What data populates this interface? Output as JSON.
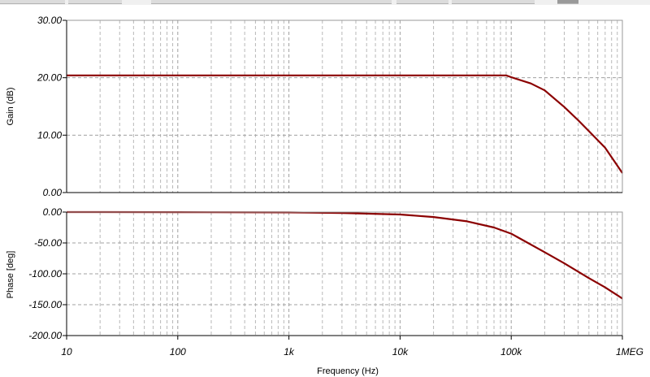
{
  "chart_data": [
    {
      "name": "gain-plot",
      "type": "line",
      "ylabel": "Gain (dB)",
      "xscale": "log",
      "xlim": [
        10,
        1000000
      ],
      "ylim": [
        0,
        30
      ],
      "yticks": [
        "30.00",
        "20.00",
        "10.00",
        "0.00"
      ],
      "ytick_values": [
        30,
        20,
        10,
        0
      ],
      "grid": true,
      "color": "#8b0000",
      "series": [
        {
          "x": [
            10,
            100,
            1000,
            10000,
            50000,
            70000,
            90000,
            100000,
            150000,
            200000,
            300000,
            400000,
            500000,
            700000,
            1000000
          ],
          "values": [
            20.4,
            20.4,
            20.4,
            20.4,
            20.4,
            20.4,
            20.4,
            20.1,
            19.0,
            17.8,
            14.9,
            12.6,
            10.7,
            7.8,
            3.4
          ]
        }
      ]
    },
    {
      "name": "phase-plot",
      "type": "line",
      "ylabel": "Phase [deg]",
      "xlabel": "Frequency (Hz)",
      "xscale": "log",
      "xlim": [
        10,
        1000000
      ],
      "ylim": [
        -200,
        0
      ],
      "yticks": [
        "0.00",
        "-50.00",
        "-100.00",
        "-150.00",
        "-200.00"
      ],
      "ytick_values": [
        0,
        -50,
        -100,
        -150,
        -200
      ],
      "xticks": [
        "10",
        "100",
        "1k",
        "10k",
        "100k",
        "1MEG"
      ],
      "xtick_values": [
        10,
        100,
        1000,
        10000,
        100000,
        1000000
      ],
      "grid": true,
      "color": "#8b0000",
      "series": [
        {
          "x": [
            10,
            100,
            1000,
            3000,
            10000,
            20000,
            40000,
            70000,
            100000,
            200000,
            300000,
            500000,
            700000,
            1000000
          ],
          "values": [
            0,
            -0.1,
            -0.5,
            -1.5,
            -4,
            -8,
            -15,
            -25,
            -35,
            -65,
            -83,
            -107,
            -122,
            -140
          ]
        }
      ]
    }
  ]
}
